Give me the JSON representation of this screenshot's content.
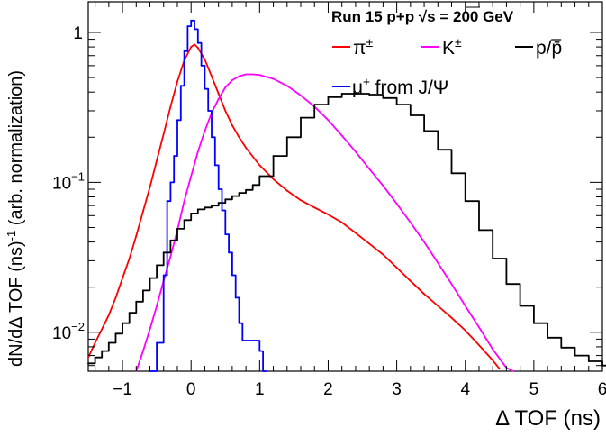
{
  "chart_data": {
    "type": "line",
    "header": {
      "text": "Run 15 p+p  ",
      "sqrt": "√s",
      "energy": " = 200 GeV"
    },
    "xlabel": "Δ TOF (ns)",
    "ylabel": "dN/dΔ TOF (ns)",
    "ylabel_exp": "-1",
    "ylabel_suffix": " (arb. normalization)",
    "xlim": [
      -1.5,
      6.0
    ],
    "ylim": [
      0.0055,
      1.6
    ],
    "y_scale": "log",
    "x_ticks": [
      -1,
      0,
      1,
      2,
      3,
      4,
      5,
      6
    ],
    "x_tick_labels": [
      "−1",
      "0",
      "1",
      "2",
      "3",
      "4",
      "5",
      "6"
    ],
    "y_ticks": [
      {
        "value": 0.01,
        "base": "10",
        "exp": "−2"
      },
      {
        "value": 0.1,
        "base": "10",
        "exp": "−1"
      },
      {
        "value": 1,
        "base": "1",
        "exp": ""
      }
    ],
    "legend": [
      {
        "label": "π",
        "sup": "±",
        "color": "#ff0000"
      },
      {
        "label": "K",
        "sup": "±",
        "color": "#ff00ff"
      },
      {
        "label": "p/p̄",
        "sup": "",
        "color": "#000000"
      },
      {
        "label": "μ",
        "sup": "±",
        "suffix": " from J/Ψ",
        "color": "#0000ff"
      }
    ],
    "series": [
      {
        "name": "π±",
        "color": "#ff0000",
        "style": "line",
        "x": [
          -1.5,
          -1.4,
          -1.3,
          -1.2,
          -1.1,
          -1.0,
          -0.9,
          -0.8,
          -0.7,
          -0.6,
          -0.5,
          -0.4,
          -0.3,
          -0.2,
          -0.1,
          0.0,
          0.05,
          0.1,
          0.2,
          0.3,
          0.4,
          0.5,
          0.6,
          0.7,
          0.8,
          1.0,
          1.2,
          1.4,
          1.6,
          1.8,
          2.0,
          2.2,
          2.4,
          2.6,
          2.8,
          3.0,
          3.2,
          3.4,
          3.6,
          3.8,
          4.0,
          4.2,
          4.4,
          4.5
        ],
        "y": [
          0.0068,
          0.0085,
          0.0105,
          0.013,
          0.017,
          0.023,
          0.031,
          0.044,
          0.064,
          0.093,
          0.14,
          0.21,
          0.32,
          0.47,
          0.65,
          0.8,
          0.83,
          0.79,
          0.66,
          0.51,
          0.39,
          0.3,
          0.24,
          0.2,
          0.17,
          0.13,
          0.105,
          0.088,
          0.076,
          0.068,
          0.061,
          0.054,
          0.046,
          0.039,
          0.033,
          0.027,
          0.022,
          0.018,
          0.015,
          0.0125,
          0.0103,
          0.0082,
          0.0065,
          0.0057
        ]
      },
      {
        "name": "K±",
        "color": "#ff00ff",
        "style": "line",
        "x": [
          -0.8,
          -0.7,
          -0.6,
          -0.5,
          -0.4,
          -0.3,
          -0.2,
          -0.1,
          0.0,
          0.1,
          0.2,
          0.3,
          0.4,
          0.5,
          0.6,
          0.7,
          0.8,
          0.9,
          1.0,
          1.2,
          1.4,
          1.6,
          1.8,
          2.0,
          2.2,
          2.4,
          2.6,
          2.8,
          3.0,
          3.2,
          3.4,
          3.6,
          3.8,
          4.0,
          4.2,
          4.4,
          4.6,
          4.7
        ],
        "y": [
          0.0055,
          0.0075,
          0.0105,
          0.015,
          0.022,
          0.032,
          0.048,
          0.075,
          0.11,
          0.16,
          0.22,
          0.29,
          0.36,
          0.43,
          0.48,
          0.51,
          0.525,
          0.525,
          0.52,
          0.49,
          0.44,
          0.38,
          0.32,
          0.26,
          0.205,
          0.16,
          0.123,
          0.095,
          0.072,
          0.054,
          0.04,
          0.029,
          0.021,
          0.015,
          0.0108,
          0.0077,
          0.0058,
          0.0055
        ]
      },
      {
        "name": "p/p̄",
        "color": "#000000",
        "style": "step",
        "x": [
          -1.5,
          -1.4,
          -1.3,
          -1.2,
          -1.1,
          -1.0,
          -0.9,
          -0.8,
          -0.7,
          -0.6,
          -0.5,
          -0.4,
          -0.3,
          -0.2,
          -0.1,
          0.0,
          0.1,
          0.2,
          0.3,
          0.4,
          0.5,
          0.6,
          0.7,
          0.8,
          0.9,
          1.0,
          1.2,
          1.4,
          1.6,
          1.8,
          2.0,
          2.2,
          2.4,
          2.6,
          2.8,
          3.0,
          3.2,
          3.4,
          3.6,
          3.8,
          4.0,
          4.2,
          4.4,
          4.6,
          4.8,
          5.0,
          5.2,
          5.4,
          5.6,
          5.8,
          6.0
        ],
        "y": [
          0.0062,
          0.0068,
          0.0075,
          0.0085,
          0.0098,
          0.0115,
          0.0135,
          0.016,
          0.019,
          0.023,
          0.028,
          0.034,
          0.041,
          0.049,
          0.056,
          0.062,
          0.066,
          0.068,
          0.07,
          0.073,
          0.077,
          0.081,
          0.085,
          0.089,
          0.096,
          0.11,
          0.15,
          0.2,
          0.27,
          0.33,
          0.37,
          0.39,
          0.39,
          0.385,
          0.365,
          0.33,
          0.28,
          0.22,
          0.165,
          0.115,
          0.075,
          0.048,
          0.031,
          0.021,
          0.015,
          0.0115,
          0.0092,
          0.0079,
          0.007,
          0.0064,
          0.006
        ]
      },
      {
        "name": "μ± from J/Ψ",
        "color": "#0000ff",
        "style": "step",
        "x": [
          -0.6,
          -0.5,
          -0.4,
          -0.35,
          -0.3,
          -0.25,
          -0.2,
          -0.15,
          -0.1,
          -0.05,
          0.0,
          0.05,
          0.1,
          0.15,
          0.2,
          0.25,
          0.3,
          0.35,
          0.4,
          0.45,
          0.5,
          0.55,
          0.6,
          0.65,
          0.7,
          0.75,
          0.8,
          0.85,
          0.9,
          0.95,
          1.0,
          1.05
        ],
        "y": [
          0.0055,
          0.0085,
          0.024,
          0.075,
          0.1,
          0.15,
          0.26,
          0.44,
          0.75,
          1.1,
          1.2,
          1.05,
          0.85,
          0.6,
          0.42,
          0.3,
          0.2,
          0.13,
          0.09,
          0.065,
          0.045,
          0.034,
          0.024,
          0.017,
          0.0115,
          0.0088,
          0.0088,
          0.0088,
          0.0088,
          0.0088,
          0.0075,
          0.0055
        ]
      }
    ]
  }
}
